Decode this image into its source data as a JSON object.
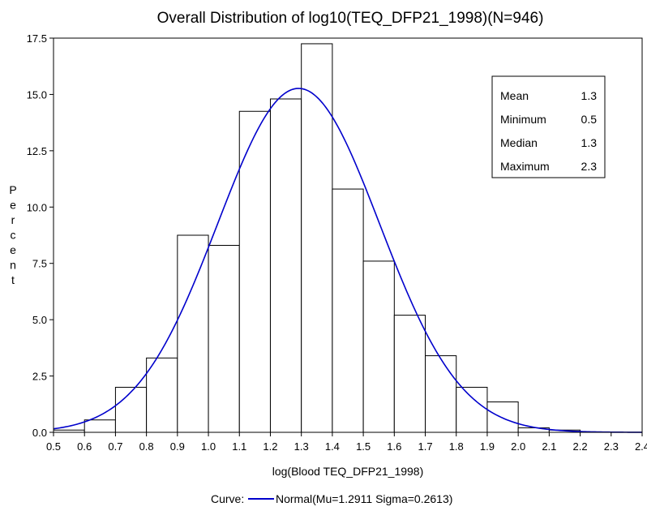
{
  "chart_data": {
    "type": "bar",
    "title": "Overall Distribution of log10(TEQ_DFP21_1998)(N=946)",
    "xlabel": "log(Blood TEQ_DFP21_1998)",
    "ylabel": "Percent",
    "xlim": [
      0.5,
      2.4
    ],
    "ylim": [
      0,
      17.5
    ],
    "x_ticks": [
      "0.5",
      "0.6",
      "0.7",
      "0.8",
      "0.9",
      "1.0",
      "1.1",
      "1.2",
      "1.3",
      "1.4",
      "1.5",
      "1.6",
      "1.7",
      "1.8",
      "1.9",
      "2.0",
      "2.1",
      "2.2",
      "2.3",
      "2.4"
    ],
    "y_ticks": [
      "0.0",
      "2.5",
      "5.0",
      "7.5",
      "10.0",
      "12.5",
      "15.0",
      "17.5"
    ],
    "bins": [
      {
        "x0": 0.5,
        "x1": 0.6,
        "value": 0.1
      },
      {
        "x0": 0.6,
        "x1": 0.7,
        "value": 0.55
      },
      {
        "x0": 0.7,
        "x1": 0.8,
        "value": 2.0
      },
      {
        "x0": 0.8,
        "x1": 0.9,
        "value": 3.3
      },
      {
        "x0": 0.9,
        "x1": 1.0,
        "value": 8.75
      },
      {
        "x0": 1.0,
        "x1": 1.1,
        "value": 8.3
      },
      {
        "x0": 1.1,
        "x1": 1.2,
        "value": 14.25
      },
      {
        "x0": 1.2,
        "x1": 1.3,
        "value": 14.8
      },
      {
        "x0": 1.3,
        "x1": 1.4,
        "value": 17.25
      },
      {
        "x0": 1.4,
        "x1": 1.5,
        "value": 10.8
      },
      {
        "x0": 1.5,
        "x1": 1.6,
        "value": 7.6
      },
      {
        "x0": 1.6,
        "x1": 1.7,
        "value": 5.2
      },
      {
        "x0": 1.7,
        "x1": 1.8,
        "value": 3.4
      },
      {
        "x0": 1.8,
        "x1": 1.9,
        "value": 2.0
      },
      {
        "x0": 1.9,
        "x1": 2.0,
        "value": 1.35
      },
      {
        "x0": 2.0,
        "x1": 2.1,
        "value": 0.2
      },
      {
        "x0": 2.1,
        "x1": 2.2,
        "value": 0.1
      },
      {
        "x0": 2.2,
        "x1": 2.3,
        "value": 0.0
      },
      {
        "x0": 2.3,
        "x1": 2.4,
        "value": 0.0
      }
    ],
    "curve": {
      "name": "Normal(Mu=1.2911 Sigma=0.2613)",
      "mu": 1.2911,
      "sigma": 0.2613,
      "bin_width": 0.1,
      "color": "#0000cc"
    },
    "stats": [
      {
        "label": "Mean",
        "value": "1.3"
      },
      {
        "label": "Minimum",
        "value": "0.5"
      },
      {
        "label": "Median",
        "value": "1.3"
      },
      {
        "label": "Maximum",
        "value": "2.3"
      }
    ],
    "legend": {
      "prefix": "Curve:",
      "placement": "bottom"
    },
    "grid": false,
    "bar_fill": "#ffffff",
    "bar_stroke": "#000000"
  }
}
